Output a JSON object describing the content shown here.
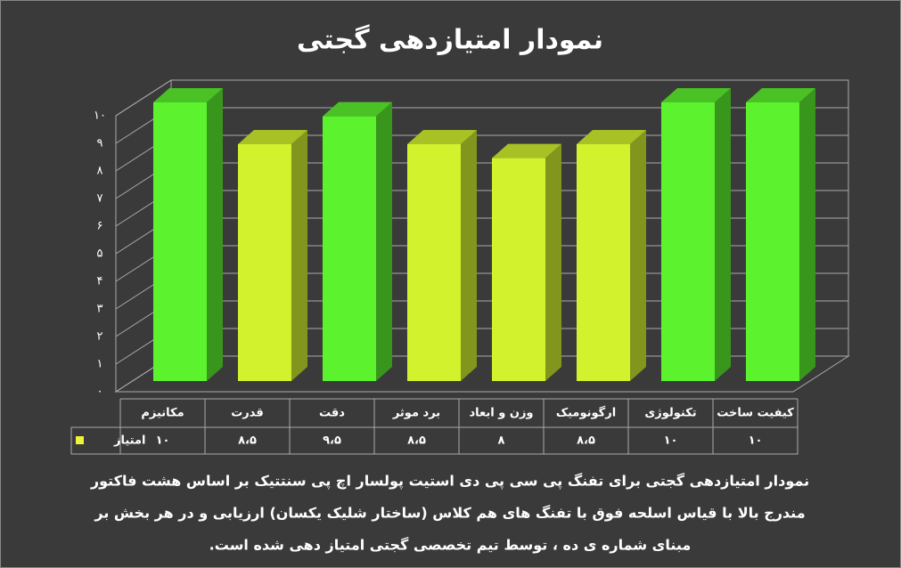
{
  "chart_data": {
    "type": "bar3d",
    "title": "نمودار امتیازدهی گجتی",
    "categories": [
      "مکانیزم",
      "قدرت",
      "دقت",
      "برد موثر",
      "وزن و ابعاد",
      "ارگونومیک",
      "تکنولوژی",
      "کیفیت ساخت"
    ],
    "series": [
      {
        "name": "امتیاز",
        "color": "#f2f23a",
        "values": [
          10,
          8.5,
          9.5,
          8.5,
          8,
          8.5,
          10,
          10
        ],
        "value_labels": [
          "۱۰",
          "۸،۵",
          "۹،۵",
          "۸،۵",
          "۸",
          "۸،۵",
          "۱۰",
          "۱۰"
        ],
        "colors": [
          "#5cf22e",
          "#d2f22e",
          "#5cf22e",
          "#d2f22e",
          "#d2f22e",
          "#d2f22e",
          "#5cf22e",
          "#5cf22e"
        ]
      }
    ],
    "ylim": [
      0,
      10
    ],
    "yticks": [
      {
        "value": 0,
        "label": "۰"
      },
      {
        "value": 1,
        "label": "۱"
      },
      {
        "value": 2,
        "label": "۲"
      },
      {
        "value": 3,
        "label": "۳"
      },
      {
        "value": 4,
        "label": "۴"
      },
      {
        "value": 5,
        "label": "۵"
      },
      {
        "value": 6,
        "label": "۶"
      },
      {
        "value": 7,
        "label": "۷"
      },
      {
        "value": 8,
        "label": "۸"
      },
      {
        "value": 9,
        "label": "۹"
      },
      {
        "value": 10,
        "label": "۱۰"
      }
    ],
    "grid": true,
    "caption_lines": [
      "نمودار امتیازدهی گجتی برای تفنگ پی سی پی دی استیت پولسار اچ پی سنتتیک بر اساس هشت فاکتور",
      "مندرج بالا با قیاس اسلحه فوق با تفنگ های هم کلاس (ساختار شلیک یکسان) ارزیابی و در هر بخش بر",
      "مبنای شماره ی ده ، توسط تیم تخصصی گجتی امتیاز دهی شده است."
    ]
  }
}
